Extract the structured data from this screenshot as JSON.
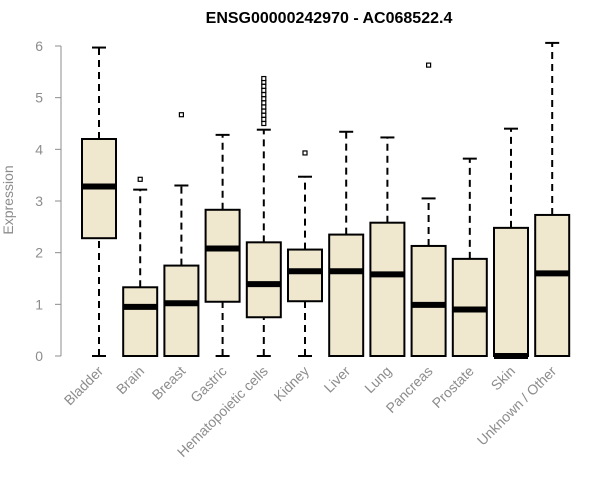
{
  "chart_data": {
    "type": "box",
    "title": "ENSG00000242970 - AC068522.4",
    "xlabel": "",
    "ylabel": "Expression",
    "ylim": [
      0,
      6
    ],
    "yticks": [
      0,
      1,
      2,
      3,
      4,
      5,
      6
    ],
    "colors": {
      "box_fill": "#efe8cf",
      "stroke": "#000000",
      "axis_text": "#8c8c8c"
    },
    "categories": [
      "Bladder",
      "Brain",
      "Breast",
      "Gastric",
      "Hematopoietic cells",
      "Kidney",
      "Liver",
      "Lung",
      "Pancreas",
      "Prostate",
      "Skin",
      "Unknown / Other"
    ],
    "boxes": [
      {
        "category": "Bladder",
        "whisker_low": 0.0,
        "q1": 2.28,
        "median": 3.28,
        "q3": 4.2,
        "whisker_high": 5.97,
        "outliers": []
      },
      {
        "category": "Brain",
        "whisker_low": 0.0,
        "q1": 0.0,
        "median": 0.95,
        "q3": 1.33,
        "whisker_high": 3.22,
        "outliers": [
          3.42
        ]
      },
      {
        "category": "Breast",
        "whisker_low": 0.0,
        "q1": 0.0,
        "median": 1.02,
        "q3": 1.75,
        "whisker_high": 3.3,
        "outliers": [
          4.67
        ]
      },
      {
        "category": "Gastric",
        "whisker_low": 0.0,
        "q1": 1.05,
        "median": 2.08,
        "q3": 2.83,
        "whisker_high": 4.28,
        "outliers": []
      },
      {
        "category": "Hematopoietic cells",
        "whisker_low": 0.0,
        "q1": 0.75,
        "median": 1.39,
        "q3": 2.2,
        "whisker_high": 4.38,
        "outliers": [
          4.5,
          4.58,
          4.66,
          4.74,
          4.82,
          4.9,
          4.98,
          5.06,
          5.14,
          5.22,
          5.3,
          5.37
        ]
      },
      {
        "category": "Kidney",
        "whisker_low": 0.0,
        "q1": 1.06,
        "median": 1.64,
        "q3": 2.06,
        "whisker_high": 3.47,
        "outliers": [
          3.93
        ]
      },
      {
        "category": "Liver",
        "whisker_low": 0.0,
        "q1": 0.0,
        "median": 1.64,
        "q3": 2.35,
        "whisker_high": 4.34,
        "outliers": []
      },
      {
        "category": "Lung",
        "whisker_low": 0.0,
        "q1": 0.0,
        "median": 1.58,
        "q3": 2.58,
        "whisker_high": 4.23,
        "outliers": []
      },
      {
        "category": "Pancreas",
        "whisker_low": 0.0,
        "q1": 0.0,
        "median": 0.99,
        "q3": 2.13,
        "whisker_high": 3.05,
        "outliers": [
          5.63
        ]
      },
      {
        "category": "Prostate",
        "whisker_low": 0.0,
        "q1": 0.0,
        "median": 0.9,
        "q3": 1.88,
        "whisker_high": 3.82,
        "outliers": []
      },
      {
        "category": "Skin",
        "whisker_low": 0.0,
        "q1": 0.0,
        "median": 0.0,
        "q3": 2.48,
        "whisker_high": 4.4,
        "outliers": []
      },
      {
        "category": "Unknown / Other",
        "whisker_low": 0.0,
        "q1": 0.0,
        "median": 1.6,
        "q3": 2.73,
        "whisker_high": 6.06,
        "outliers": []
      }
    ]
  }
}
